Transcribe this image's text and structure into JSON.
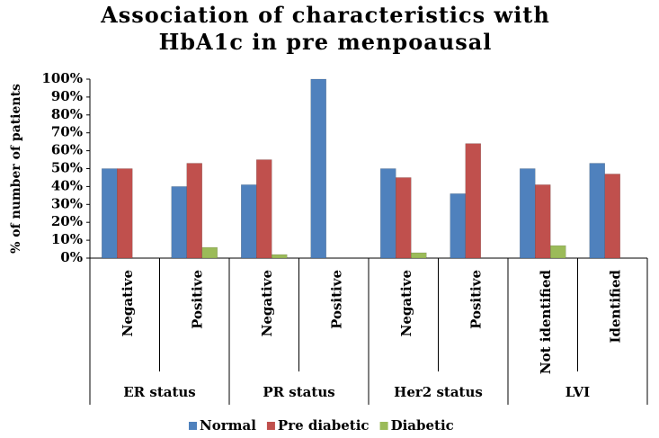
{
  "chart_data": {
    "type": "bar",
    "title": "Association of characteristics with HbA1c in pre menpoausal",
    "y_label": "% of number of patients",
    "groups": [
      {
        "name": "ER status",
        "categories": [
          "Negative",
          "Positive"
        ]
      },
      {
        "name": "PR status",
        "categories": [
          "Negative",
          "Positive"
        ]
      },
      {
        "name": "Her2 status",
        "categories": [
          "Negative",
          "Positive"
        ]
      },
      {
        "name": "LVI",
        "categories": [
          "Not identified",
          "Identified"
        ]
      }
    ],
    "series": [
      {
        "name": "Normal",
        "color": "#4f81bd",
        "values": [
          50,
          40,
          41,
          100,
          50,
          36,
          50,
          53
        ]
      },
      {
        "name": "Pre diabetic",
        "color": "#c0504d",
        "values": [
          50,
          53,
          55,
          0,
          45,
          64,
          41,
          47
        ]
      },
      {
        "name": "Diabetic",
        "color": "#9bbb59",
        "values": [
          0,
          6,
          2,
          0,
          3,
          0,
          7,
          0
        ]
      }
    ],
    "ylim": [
      0,
      100
    ],
    "yticks": [
      {
        "value": 0,
        "label": "0%"
      },
      {
        "value": 10,
        "label": "10%"
      },
      {
        "value": 20,
        "label": "20%"
      },
      {
        "value": 30,
        "label": "30%"
      },
      {
        "value": 40,
        "label": "40%"
      },
      {
        "value": 50,
        "label": "50%"
      },
      {
        "value": 60,
        "label": "60%"
      },
      {
        "value": 70,
        "label": "70%"
      },
      {
        "value": 80,
        "label": "80%"
      },
      {
        "value": 90,
        "label": "90%"
      },
      {
        "value": 100,
        "label": "100%"
      }
    ],
    "legend": "bottom"
  }
}
